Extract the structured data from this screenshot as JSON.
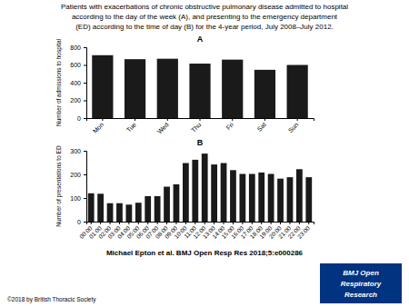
{
  "title": "Patients with exacerbations of chronic obstructive pulmonary disease admitted to hospital\naccording to the day of the week (A), and presenting to the emergency department\n(ED) according to the time of day (B) for the 4-year period, July 2008–July 2012.",
  "annotations": [
    "Michael Epton et al. BMJ Open Resp Res 2018;5:e000286",
    "©2018 by British Thoracic Society",
    "BMJ Open",
    "Respiratory",
    "Research"
  ],
  "chart_data": [
    {
      "type": "bar",
      "title": "A",
      "categories": [
        "Mon",
        "Tue",
        "Wed",
        "Thu",
        "Fri",
        "Sat",
        "Sun"
      ],
      "values": [
        710,
        665,
        670,
        615,
        660,
        545,
        600
      ],
      "ylabel": "Number of admissions to hospital",
      "ylim": [
        0,
        800
      ],
      "yticks": [
        0,
        200,
        400,
        600,
        800
      ],
      "color": "#1a1a1a"
    },
    {
      "type": "bar",
      "title": "B",
      "categories": [
        "00:00",
        "01:00",
        "02:00",
        "03:00",
        "04:00",
        "05:00",
        "06:00",
        "07:00",
        "08:00",
        "09:00",
        "10:00",
        "11:00",
        "12:00",
        "13:00",
        "14:00",
        "15:00",
        "16:00",
        "17:00",
        "18:00",
        "19:00",
        "20:00",
        "21:00",
        "22:00",
        "23:00"
      ],
      "values": [
        120,
        118,
        78,
        78,
        72,
        80,
        108,
        108,
        148,
        158,
        248,
        262,
        288,
        242,
        248,
        218,
        202,
        202,
        208,
        202,
        182,
        188,
        222,
        188
      ],
      "ylabel": "Number of presentations to ED",
      "ylim": [
        0,
        300
      ],
      "yticks": [
        0,
        100,
        200,
        300
      ],
      "color": "#1a1a1a"
    }
  ]
}
